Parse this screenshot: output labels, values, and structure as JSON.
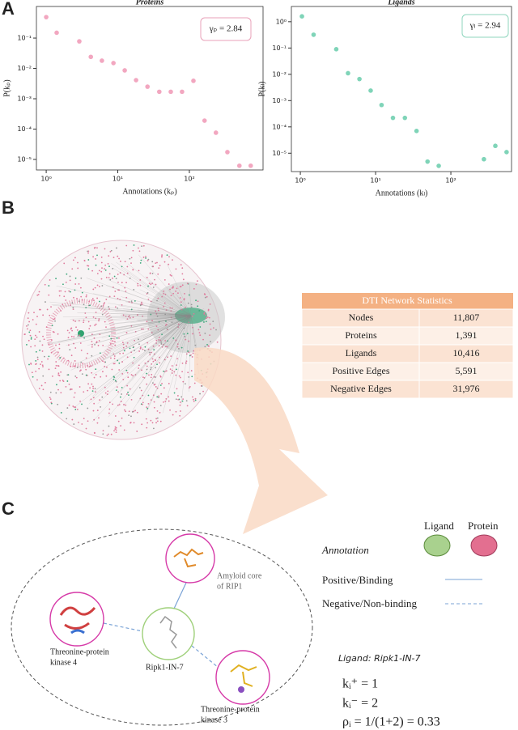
{
  "panels": [
    "A",
    "B",
    "C"
  ],
  "chart_data": [
    {
      "type": "scatter",
      "title": "Proteins",
      "x_label": "Annotations (kₚ)",
      "y_label": "P(kₚ)",
      "annotation": "γₚ = 2.84",
      "color": "#f2a7c0",
      "log_x": true,
      "log_y": true,
      "x": [
        1,
        1.4,
        2.9,
        4.2,
        6,
        8.7,
        12.5,
        18,
        26,
        38,
        55,
        79,
        114,
        163,
        235,
        340,
        500,
        720
      ],
      "values": [
        0.49,
        0.15,
        0.078,
        0.024,
        0.018,
        0.015,
        0.0086,
        0.0041,
        0.0025,
        0.0017,
        0.0017,
        0.0017,
        0.0039,
        0.00019,
        7.6e-05,
        1.74e-05,
        6.2e-06,
        6.2e-06
      ],
      "xlim": [
        0.73,
        1070
      ],
      "ylim": [
        4.5e-06,
        1.1
      ],
      "xticks": [
        {
          "value": 1,
          "label": "10⁰"
        },
        {
          "value": 10,
          "label": "10¹"
        },
        {
          "value": 100,
          "label": "10²"
        }
      ],
      "yticks": [
        {
          "value": 0.1,
          "label": "10⁻¹"
        },
        {
          "value": 0.01,
          "label": "10⁻²"
        },
        {
          "value": 0.001,
          "label": "10⁻³"
        },
        {
          "value": 0.0001,
          "label": "10⁻⁴"
        },
        {
          "value": 1e-05,
          "label": "10⁻⁵"
        }
      ]
    },
    {
      "type": "scatter",
      "title": "Ligands",
      "x_label": "Annotations (kₗ)",
      "y_label": "P(kₗ)",
      "annotation": "γₗ = 2.94",
      "color": "#7fd4b8",
      "log_x": true,
      "log_y": true,
      "x": [
        1.05,
        1.5,
        3,
        4.3,
        6.1,
        8.6,
        12,
        17,
        24.5,
        35,
        49,
        69,
        275,
        390,
        550
      ],
      "values": [
        1.6,
        0.32,
        0.09,
        0.011,
        0.0066,
        0.0024,
        0.00068,
        0.00022,
        0.00022,
        7e-05,
        4.8e-06,
        3.3e-06,
        5.9e-06,
        1.9e-05,
        1.1e-05
      ],
      "xlim": [
        0.76,
        640
      ],
      "ylim": [
        2e-06,
        3.8
      ],
      "xticks": [
        {
          "value": 1,
          "label": "10⁰"
        },
        {
          "value": 10,
          "label": "10¹"
        },
        {
          "value": 100,
          "label": "10²"
        }
      ],
      "yticks": [
        {
          "value": 1,
          "label": "10⁰"
        },
        {
          "value": 0.1,
          "label": "10⁻¹"
        },
        {
          "value": 0.01,
          "label": "10⁻²"
        },
        {
          "value": 0.001,
          "label": "10⁻³"
        },
        {
          "value": 0.0001,
          "label": "10⁻⁴"
        },
        {
          "value": 1e-05,
          "label": "10⁻⁵"
        }
      ]
    }
  ],
  "table": {
    "title": "DTI Network Statistics",
    "rows": [
      [
        "Nodes",
        "11,807"
      ],
      [
        "Proteins",
        "1,391"
      ],
      [
        "Ligands",
        "10,416"
      ],
      [
        "Positive Edges",
        "5,591"
      ],
      [
        "Negative Edges",
        "31,976"
      ]
    ]
  },
  "diagram": {
    "nodes": [
      {
        "label": [
          "Amyloid core",
          "of RIP1"
        ]
      },
      {
        "label": [
          "Threonine-protein",
          "kinase 4"
        ]
      },
      {
        "label": [
          "Ripk1-IN-7"
        ]
      },
      {
        "label": [
          "Threonine-protein",
          "kinase 3"
        ]
      }
    ],
    "legend": {
      "ligand": "Ligand",
      "protein": "Protein",
      "title": "Annotation",
      "positive": "Positive/Binding",
      "negative": "Negative/Non-binding"
    },
    "example": {
      "title": "Ligand: Ripk1-IN-7",
      "formulas": [
        "kᵢ⁺ = 1",
        "kᵢ⁻ = 2",
        "ρᵢ = 1/(1+2) = 0.33"
      ]
    }
  }
}
